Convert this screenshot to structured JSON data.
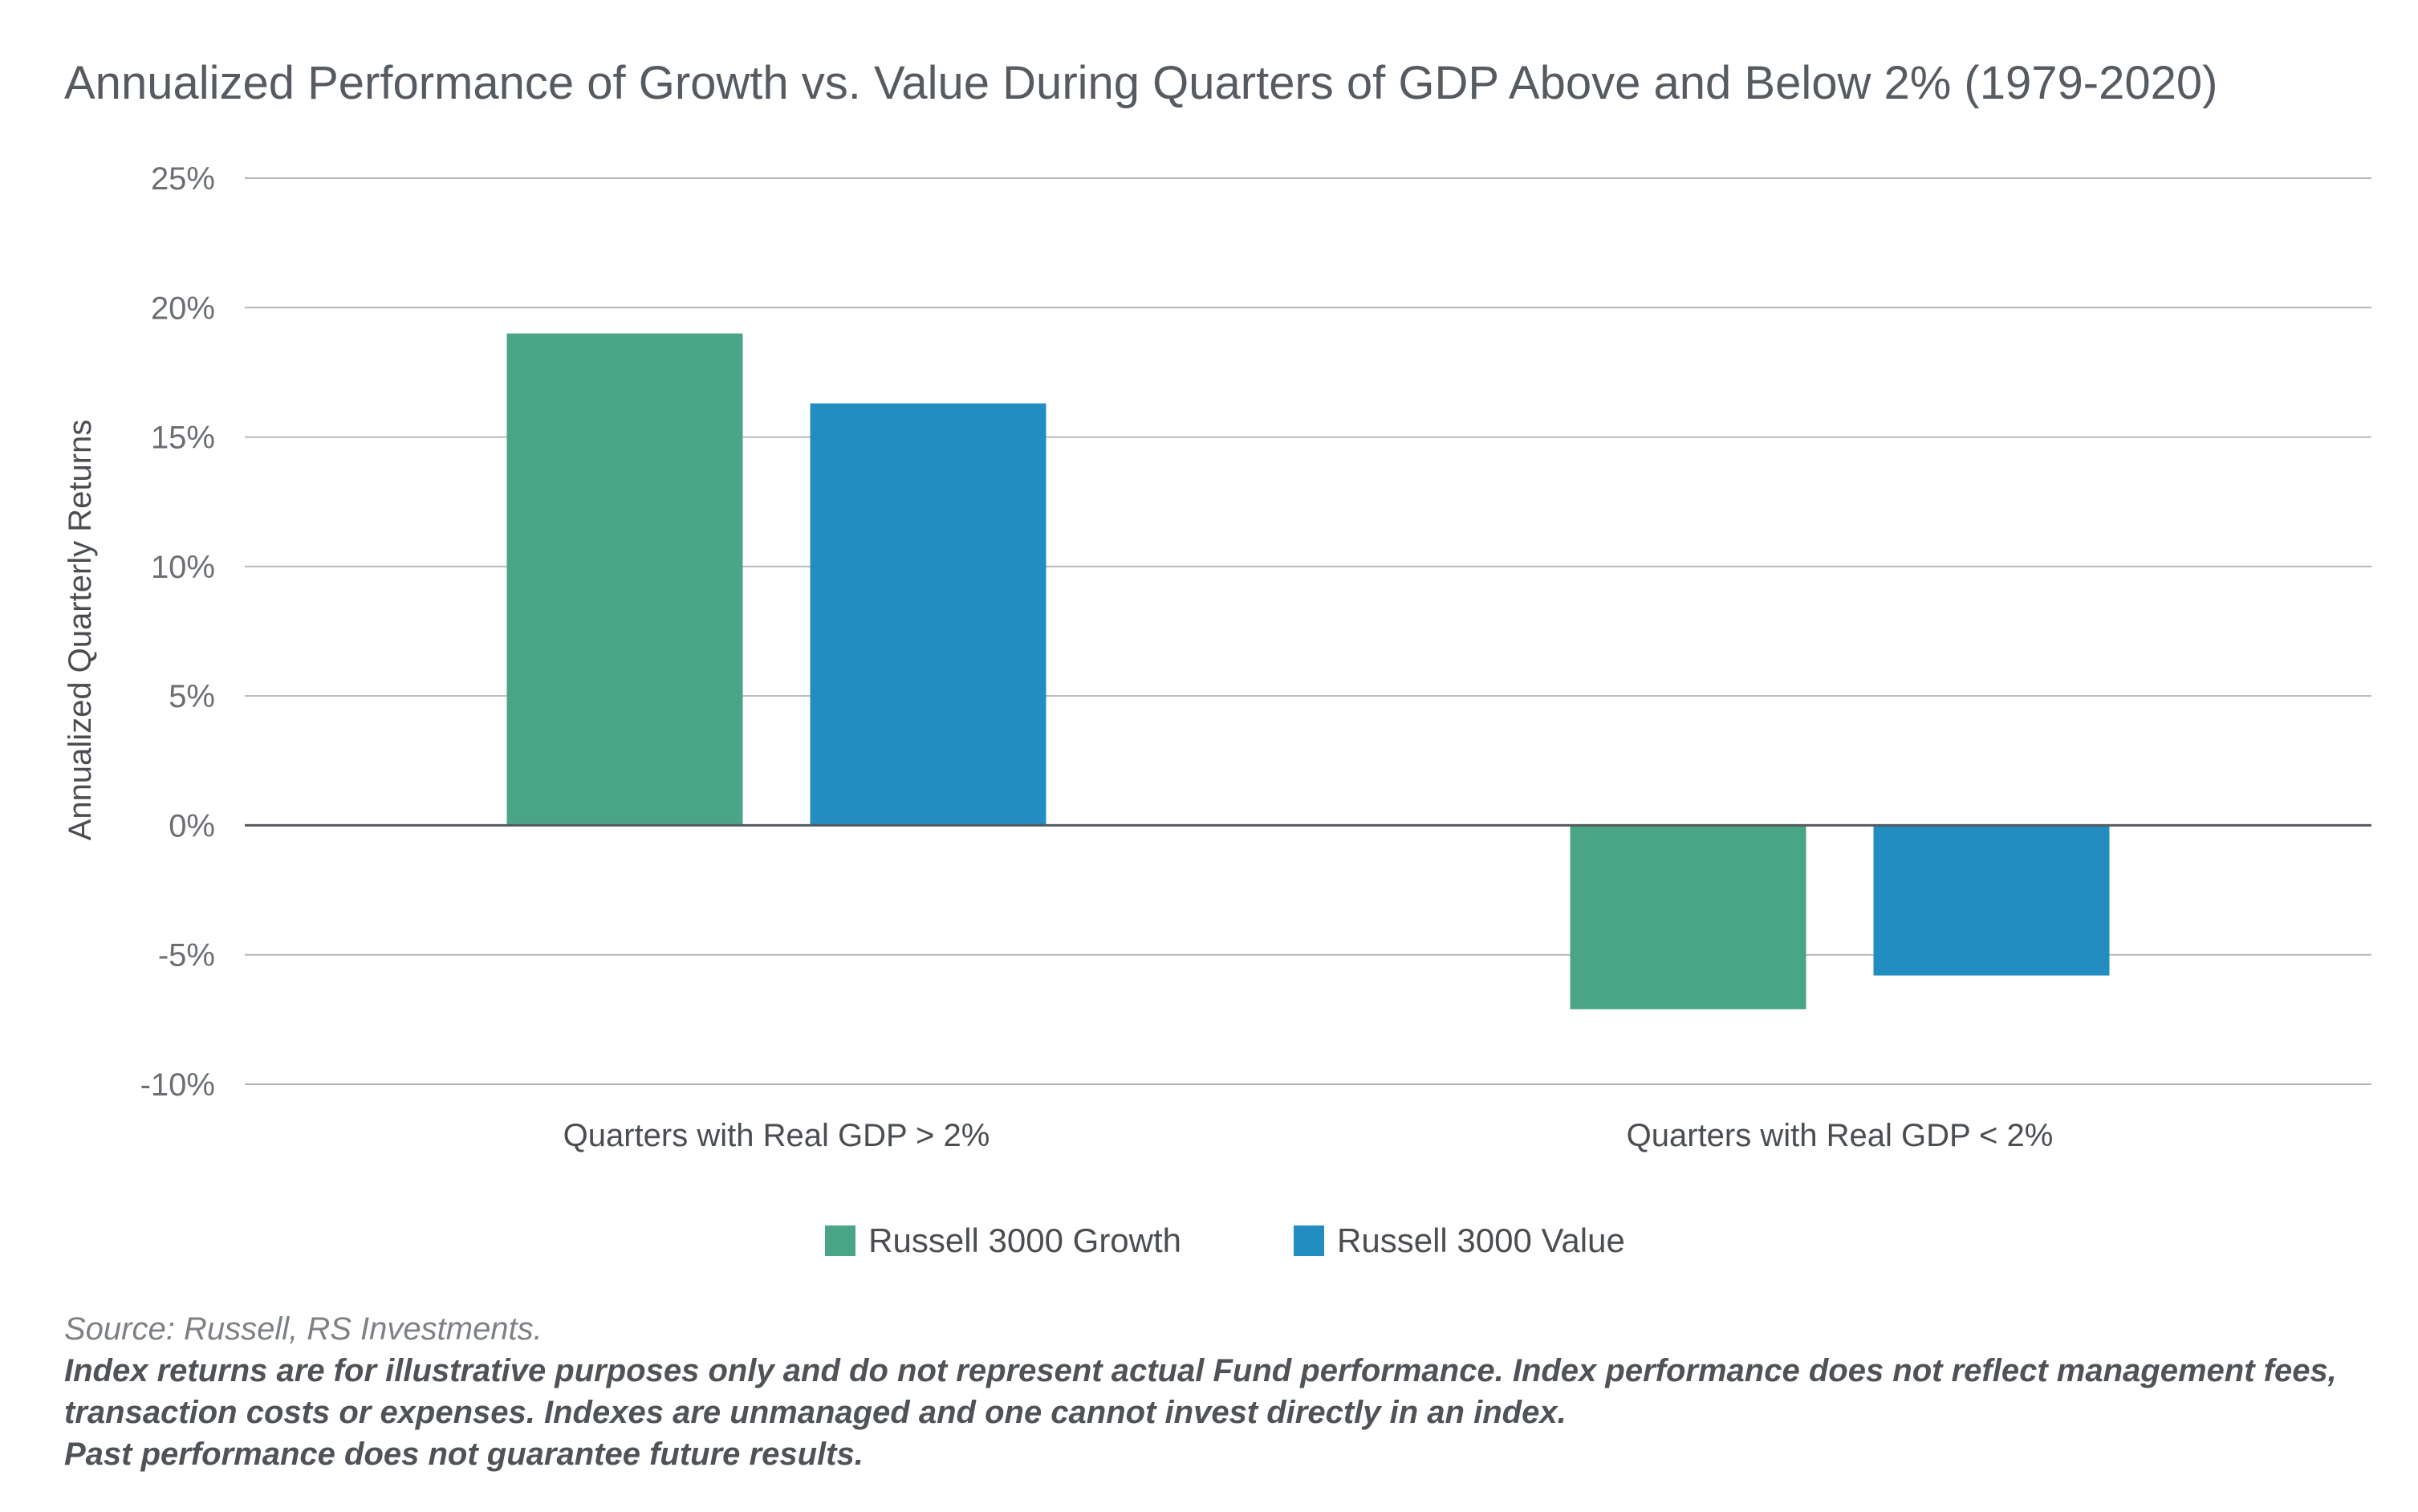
{
  "title": "Annualized Performance of Growth vs. Value During Quarters of GDP Above and Below 2% (1979-2020)",
  "chart_data": {
    "type": "bar",
    "title": "Annualized Performance of Growth vs. Value During Quarters of GDP Above and Below 2% (1979-2020)",
    "xlabel": "",
    "ylabel": "Annualized Quarterly Returns",
    "categories": [
      "Quarters with Real GDP > 2%",
      "Quarters with Real GDP < 2%"
    ],
    "series": [
      {
        "name": "Russell 3000 Growth",
        "color": "#4aa586",
        "values": [
          19.0,
          -7.1
        ]
      },
      {
        "name": "Russell 3000 Value",
        "color": "#238dc2",
        "values": [
          16.3,
          -5.8
        ]
      }
    ],
    "ylim": [
      -10,
      25
    ],
    "yticks": [
      25,
      20,
      15,
      10,
      5,
      0,
      -5,
      -10
    ],
    "ytick_labels": [
      "25%",
      "20%",
      "15%",
      "10%",
      "5%",
      "0%",
      "-5%",
      "-10%"
    ],
    "grid": true,
    "legend_position": "bottom-center"
  },
  "legend": {
    "items": [
      {
        "label": "Russell 3000 Growth",
        "color": "#4aa586"
      },
      {
        "label": "Russell 3000 Value",
        "color": "#238dc2"
      }
    ]
  },
  "footnotes": {
    "source": "Source: Russell, RS Investments.",
    "disclaimer_1": "Index returns are for illustrative purposes only and do not represent actual Fund performance. Index performance does not reflect management fees, transaction costs or expenses. Indexes are unmanaged and one cannot invest directly in an index.",
    "disclaimer_2": "Past performance does not guarantee future results."
  }
}
